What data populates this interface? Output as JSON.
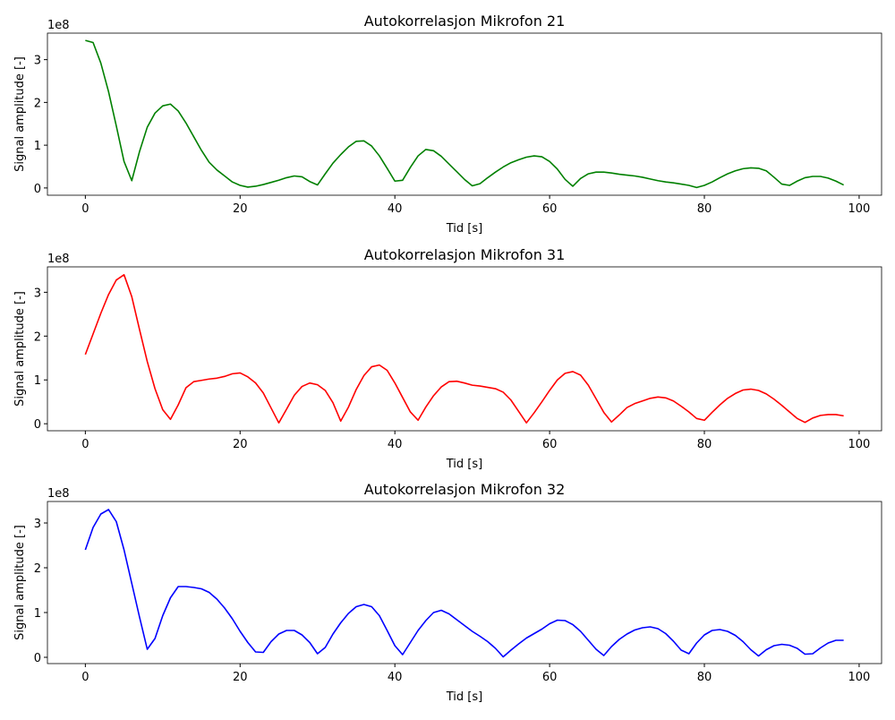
{
  "chart_data": [
    {
      "type": "line",
      "title": "Autokorrelasjon Mikrofon 21",
      "x_label": "Tid [s]",
      "y_label": "Signal amplitude [-]",
      "offset_label": "1e8",
      "color": "#008000",
      "x": [
        0,
        1,
        2,
        3,
        4,
        5,
        6,
        7,
        8,
        9,
        10,
        11,
        12,
        13,
        14,
        15,
        16,
        17,
        18,
        19,
        20,
        21,
        22,
        23,
        24,
        25,
        26,
        27,
        28,
        29,
        30,
        31,
        32,
        33,
        34,
        35,
        36,
        37,
        38,
        39,
        40,
        41,
        42,
        43,
        44,
        45,
        46,
        47,
        48,
        49,
        50,
        51,
        52,
        53,
        54,
        55,
        56,
        57,
        58,
        59,
        60,
        61,
        62,
        63,
        64,
        65,
        66,
        67,
        68,
        69,
        70,
        71,
        72,
        73,
        74,
        75,
        76,
        77,
        78,
        79,
        80,
        81,
        82,
        83,
        84,
        85,
        86,
        87,
        88,
        89,
        90,
        91,
        92,
        93,
        94,
        95,
        96,
        97,
        98
      ],
      "values": [
        3.45,
        3.4,
        2.92,
        2.25,
        1.45,
        0.62,
        0.17,
        0.85,
        1.42,
        1.75,
        1.92,
        1.96,
        1.8,
        1.52,
        1.2,
        0.88,
        0.6,
        0.42,
        0.28,
        0.14,
        0.06,
        0.02,
        0.04,
        0.08,
        0.13,
        0.18,
        0.24,
        0.28,
        0.26,
        0.15,
        0.07,
        0.33,
        0.58,
        0.78,
        0.96,
        1.09,
        1.1,
        0.98,
        0.75,
        0.46,
        0.16,
        0.18,
        0.48,
        0.75,
        0.9,
        0.87,
        0.74,
        0.56,
        0.38,
        0.2,
        0.05,
        0.1,
        0.24,
        0.37,
        0.49,
        0.59,
        0.66,
        0.72,
        0.75,
        0.73,
        0.62,
        0.44,
        0.2,
        0.04,
        0.22,
        0.33,
        0.37,
        0.37,
        0.35,
        0.32,
        0.3,
        0.28,
        0.25,
        0.21,
        0.17,
        0.14,
        0.12,
        0.09,
        0.06,
        0.01,
        0.06,
        0.14,
        0.24,
        0.33,
        0.4,
        0.45,
        0.47,
        0.46,
        0.4,
        0.25,
        0.09,
        0.06,
        0.16,
        0.24,
        0.27,
        0.27,
        0.23,
        0.16,
        0.07
      ],
      "xlim": [
        -4.9,
        102.9
      ],
      "ylim": [
        -0.17,
        3.62
      ],
      "xticks": [
        0,
        20,
        40,
        60,
        80,
        100
      ],
      "yticks": [
        0,
        1,
        2,
        3
      ]
    },
    {
      "type": "line",
      "title": "Autokorrelasjon Mikrofon 31",
      "x_label": "Tid [s]",
      "y_label": "Signal amplitude [-]",
      "offset_label": "1e8",
      "color": "#ff0000",
      "x": [
        0,
        1,
        2,
        3,
        4,
        5,
        6,
        7,
        8,
        9,
        10,
        11,
        12,
        13,
        14,
        15,
        16,
        17,
        18,
        19,
        20,
        21,
        22,
        23,
        24,
        25,
        26,
        27,
        28,
        29,
        30,
        31,
        32,
        33,
        34,
        35,
        36,
        37,
        38,
        39,
        40,
        41,
        42,
        43,
        44,
        45,
        46,
        47,
        48,
        49,
        50,
        51,
        52,
        53,
        54,
        55,
        56,
        57,
        58,
        59,
        60,
        61,
        62,
        63,
        64,
        65,
        66,
        67,
        68,
        69,
        70,
        71,
        72,
        73,
        74,
        75,
        76,
        77,
        78,
        79,
        80,
        81,
        82,
        83,
        84,
        85,
        86,
        87,
        88,
        89,
        90,
        91,
        92,
        93,
        94,
        95,
        96,
        97,
        98
      ],
      "values": [
        1.58,
        2.05,
        2.52,
        2.95,
        3.28,
        3.4,
        2.9,
        2.15,
        1.42,
        0.8,
        0.32,
        0.1,
        0.43,
        0.82,
        0.96,
        0.99,
        1.02,
        1.04,
        1.08,
        1.14,
        1.16,
        1.07,
        0.93,
        0.7,
        0.36,
        0.02,
        0.33,
        0.65,
        0.85,
        0.93,
        0.89,
        0.76,
        0.48,
        0.06,
        0.38,
        0.78,
        1.1,
        1.3,
        1.34,
        1.22,
        0.93,
        0.6,
        0.27,
        0.08,
        0.38,
        0.64,
        0.84,
        0.96,
        0.97,
        0.93,
        0.88,
        0.86,
        0.83,
        0.8,
        0.72,
        0.54,
        0.28,
        0.02,
        0.25,
        0.5,
        0.76,
        1.0,
        1.15,
        1.19,
        1.11,
        0.88,
        0.57,
        0.26,
        0.04,
        0.2,
        0.37,
        0.46,
        0.52,
        0.58,
        0.61,
        0.59,
        0.52,
        0.4,
        0.27,
        0.12,
        0.08,
        0.26,
        0.43,
        0.58,
        0.69,
        0.77,
        0.79,
        0.76,
        0.68,
        0.56,
        0.42,
        0.27,
        0.12,
        0.03,
        0.13,
        0.19,
        0.21,
        0.21,
        0.18
      ],
      "xlim": [
        -4.9,
        102.9
      ],
      "ylim": [
        -0.16,
        3.58
      ],
      "xticks": [
        0,
        20,
        40,
        60,
        80,
        100
      ],
      "yticks": [
        0,
        1,
        2,
        3
      ]
    },
    {
      "type": "line",
      "title": "Autokorrelasjon Mikrofon 32",
      "x_label": "Tid [s]",
      "y_label": "Signal amplitude [-]",
      "offset_label": "1e8",
      "color": "#0000ff",
      "x": [
        0,
        1,
        2,
        3,
        4,
        5,
        6,
        7,
        8,
        9,
        10,
        11,
        12,
        13,
        14,
        15,
        16,
        17,
        18,
        19,
        20,
        21,
        22,
        23,
        24,
        25,
        26,
        27,
        28,
        29,
        30,
        31,
        32,
        33,
        34,
        35,
        36,
        37,
        38,
        39,
        40,
        41,
        42,
        43,
        44,
        45,
        46,
        47,
        48,
        49,
        50,
        51,
        52,
        53,
        54,
        55,
        56,
        57,
        58,
        59,
        60,
        61,
        62,
        63,
        64,
        65,
        66,
        67,
        68,
        69,
        70,
        71,
        72,
        73,
        74,
        75,
        76,
        77,
        78,
        79,
        80,
        81,
        82,
        83,
        84,
        85,
        86,
        87,
        88,
        89,
        90,
        91,
        92,
        93,
        94,
        95,
        96,
        97,
        98
      ],
      "values": [
        2.4,
        2.9,
        3.2,
        3.3,
        3.03,
        2.4,
        1.65,
        0.9,
        0.18,
        0.42,
        0.93,
        1.33,
        1.58,
        1.58,
        1.56,
        1.53,
        1.45,
        1.3,
        1.1,
        0.86,
        0.58,
        0.33,
        0.12,
        0.11,
        0.35,
        0.52,
        0.6,
        0.6,
        0.5,
        0.33,
        0.08,
        0.22,
        0.52,
        0.77,
        0.98,
        1.13,
        1.18,
        1.13,
        0.93,
        0.6,
        0.26,
        0.06,
        0.33,
        0.6,
        0.82,
        1.0,
        1.05,
        0.97,
        0.84,
        0.71,
        0.58,
        0.47,
        0.35,
        0.2,
        0.01,
        0.16,
        0.3,
        0.43,
        0.53,
        0.63,
        0.75,
        0.83,
        0.82,
        0.73,
        0.58,
        0.38,
        0.18,
        0.04,
        0.24,
        0.4,
        0.52,
        0.61,
        0.66,
        0.68,
        0.64,
        0.53,
        0.36,
        0.16,
        0.08,
        0.32,
        0.5,
        0.6,
        0.62,
        0.58,
        0.49,
        0.35,
        0.17,
        0.03,
        0.17,
        0.26,
        0.29,
        0.27,
        0.2,
        0.07,
        0.08,
        0.21,
        0.32,
        0.38,
        0.38
      ],
      "xlim": [
        -4.9,
        102.9
      ],
      "ylim": [
        -0.14,
        3.48
      ],
      "xticks": [
        0,
        20,
        40,
        60,
        80,
        100
      ],
      "yticks": [
        0,
        1,
        2,
        3
      ]
    }
  ]
}
